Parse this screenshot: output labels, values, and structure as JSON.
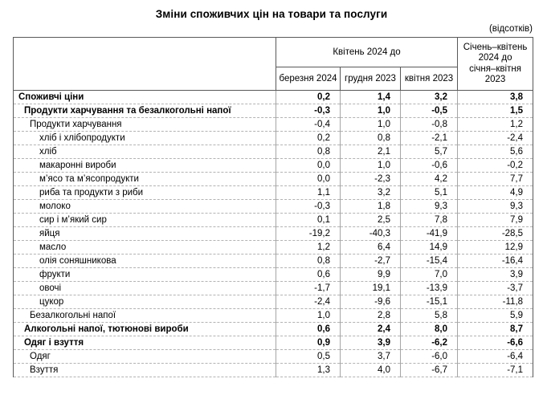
{
  "title": "Зміни споживчих цін на товари та послуги",
  "unit_note": "(відсотків)",
  "table": {
    "group_header": "Квітень 2024 до",
    "sub_headers": [
      "березня 2024",
      "грудня 2023",
      "квітня 2023"
    ],
    "period_header": "Січень–квітень\n2024 до\nсічня–квітня\n2023",
    "rows": [
      {
        "label": "Споживчі ціни",
        "indent": 0,
        "bold": true,
        "values": [
          "0,2",
          "1,4",
          "3,2",
          "3,8"
        ]
      },
      {
        "label": "Продукти харчування та безалкогольні напої",
        "indent": 1,
        "bold": true,
        "values": [
          "-0,3",
          "1,0",
          "-0,5",
          "1,5"
        ]
      },
      {
        "label": "Продукти харчування",
        "indent": 2,
        "bold": false,
        "values": [
          "-0,4",
          "1,0",
          "-0,8",
          "1,2"
        ]
      },
      {
        "label": "хліб і хлібопродукти",
        "indent": 3,
        "bold": false,
        "values": [
          "0,2",
          "0,8",
          "-2,1",
          "-2,4"
        ]
      },
      {
        "label": "хліб",
        "indent": 3,
        "bold": false,
        "values": [
          "0,8",
          "2,1",
          "5,7",
          "5,6"
        ]
      },
      {
        "label": "макаронні вироби",
        "indent": 3,
        "bold": false,
        "values": [
          "0,0",
          "1,0",
          "-0,6",
          "-0,2"
        ]
      },
      {
        "label": "м’ясо та м’ясопродукти",
        "indent": 3,
        "bold": false,
        "values": [
          "0,0",
          "-2,3",
          "4,2",
          "7,7"
        ]
      },
      {
        "label": "риба та продукти з риби",
        "indent": 3,
        "bold": false,
        "values": [
          "1,1",
          "3,2",
          "5,1",
          "4,9"
        ]
      },
      {
        "label": "молоко",
        "indent": 3,
        "bold": false,
        "values": [
          "-0,3",
          "1,8",
          "9,3",
          "9,3"
        ]
      },
      {
        "label": "сир і м’який сир",
        "indent": 3,
        "bold": false,
        "values": [
          "0,1",
          "2,5",
          "7,8",
          "7,9"
        ]
      },
      {
        "label": "яйця",
        "indent": 3,
        "bold": false,
        "values": [
          "-19,2",
          "-40,3",
          "-41,9",
          "-28,5"
        ]
      },
      {
        "label": "масло",
        "indent": 3,
        "bold": false,
        "values": [
          "1,2",
          "6,4",
          "14,9",
          "12,9"
        ]
      },
      {
        "label": "олія соняшникова",
        "indent": 3,
        "bold": false,
        "values": [
          "0,8",
          "-2,7",
          "-15,4",
          "-16,4"
        ]
      },
      {
        "label": "фрукти",
        "indent": 3,
        "bold": false,
        "values": [
          "0,6",
          "9,9",
          "7,0",
          "3,9"
        ]
      },
      {
        "label": "овочі",
        "indent": 3,
        "bold": false,
        "values": [
          "-1,7",
          "19,1",
          "-13,9",
          "-3,7"
        ]
      },
      {
        "label": "цукор",
        "indent": 3,
        "bold": false,
        "values": [
          "-2,4",
          "-9,6",
          "-15,1",
          "-11,8"
        ]
      },
      {
        "label": "Безалкогольні напої",
        "indent": 2,
        "bold": false,
        "values": [
          "1,0",
          "2,8",
          "5,8",
          "5,9"
        ]
      },
      {
        "label": "Алкогольні напої, тютюнові вироби",
        "indent": 1,
        "bold": true,
        "values": [
          "0,6",
          "2,4",
          "8,0",
          "8,7"
        ]
      },
      {
        "label": "Одяг і взуття",
        "indent": 1,
        "bold": true,
        "values": [
          "0,9",
          "3,9",
          "-6,2",
          "-6,6"
        ]
      },
      {
        "label": "Одяг",
        "indent": 2,
        "bold": false,
        "values": [
          "0,5",
          "3,7",
          "-6,0",
          "-6,4"
        ]
      },
      {
        "label": "Взуття",
        "indent": 2,
        "bold": false,
        "values": [
          "1,3",
          "4,0",
          "-6,7",
          "-7,1"
        ]
      }
    ]
  }
}
